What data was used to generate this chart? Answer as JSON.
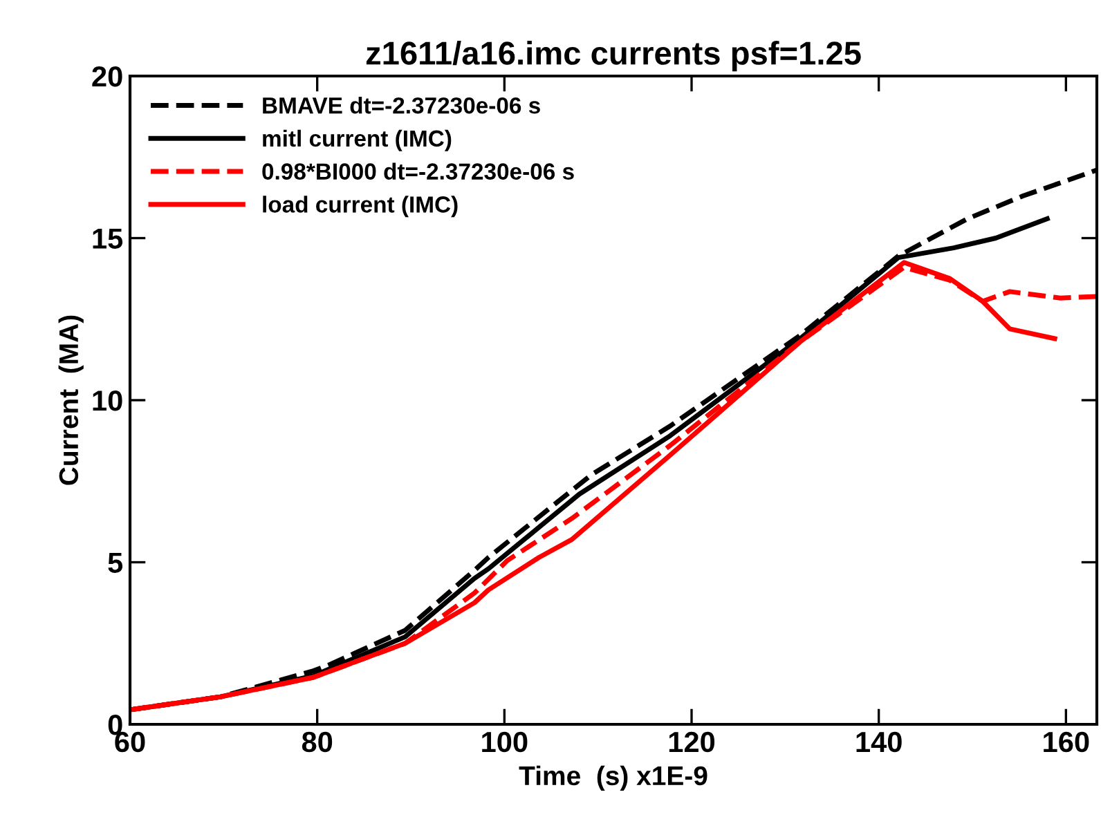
{
  "chart_data": {
    "type": "line",
    "title": "z1611/a16.imc currents psf=1.25",
    "xlabel": "Time  (s) x1E-9",
    "ylabel": "Current  (MA)",
    "xlim": [
      60,
      163.3
    ],
    "ylim": [
      0,
      20
    ],
    "xticks": [
      60,
      80,
      100,
      120,
      140,
      160
    ],
    "yticks": [
      0,
      5,
      10,
      15,
      20
    ],
    "grid": false,
    "legend": "top left",
    "series": [
      {
        "name": "BMAVE dt=-2.37230e-06 s",
        "color": "#000000",
        "line_style": "dashed",
        "x": [
          60,
          69.7,
          79.6,
          81.4,
          89.4,
          96.8,
          98.3,
          109.3,
          117.7,
          131.6,
          142.1,
          149.5,
          155.4,
          163.3
        ],
        "values": [
          0.45,
          0.85,
          1.65,
          1.85,
          2.9,
          4.75,
          5.15,
          7.7,
          9.2,
          12.0,
          14.45,
          15.6,
          16.3,
          17.1
        ]
      },
      {
        "name": "mitl current (IMC)",
        "color": "#000000",
        "line_style": "solid",
        "x": [
          60,
          69.7,
          79.6,
          89.4,
          96.8,
          98.3,
          108,
          117.7,
          131.6,
          142.1,
          148,
          152.5,
          158
        ],
        "values": [
          0.45,
          0.85,
          1.5,
          2.7,
          4.5,
          4.8,
          7.1,
          8.9,
          11.9,
          14.4,
          14.7,
          15.0,
          15.6
        ]
      },
      {
        "name": "0.98*BI000 dt=-2.37230e-06 s",
        "color": "#ff0000",
        "line_style": "dashed",
        "x": [
          60,
          69.7,
          79.6,
          89.4,
          96.8,
          100.3,
          107.2,
          117.7,
          131.6,
          142.7,
          147.6,
          151.1,
          154,
          159.4,
          163.3
        ],
        "values": [
          0.45,
          0.85,
          1.45,
          2.5,
          4.05,
          5.05,
          6.35,
          8.6,
          11.8,
          14.1,
          13.7,
          13.05,
          13.35,
          13.15,
          13.2
        ]
      },
      {
        "name": "load current (IMC)",
        "color": "#ff0000",
        "line_style": "solid",
        "x": [
          60,
          69.7,
          79.6,
          89.4,
          96.8,
          98.3,
          103.7,
          107.2,
          117.7,
          131.6,
          142.7,
          147.6,
          151.1,
          154,
          158.8
        ],
        "values": [
          0.45,
          0.85,
          1.45,
          2.5,
          3.75,
          4.15,
          5.15,
          5.7,
          8.3,
          11.8,
          14.25,
          13.75,
          13.05,
          12.2,
          11.9
        ]
      }
    ]
  }
}
